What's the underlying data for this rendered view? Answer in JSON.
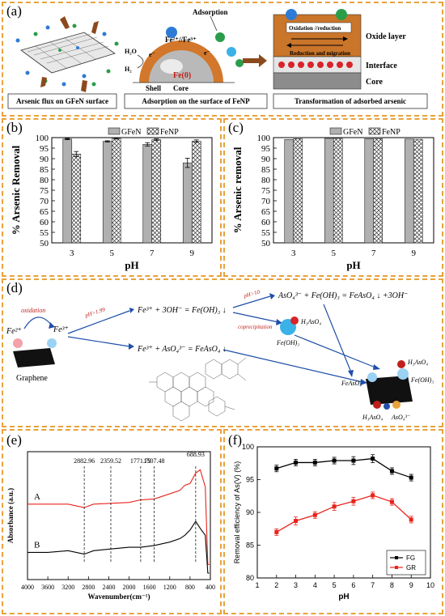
{
  "panel_a": {
    "label": "(a)",
    "h2o": "H₂O",
    "h2": "H₂",
    "e1": "e⁻",
    "e2": "e⁻",
    "fe_ions": "Fe²⁺//Fe³⁺",
    "fe0": "Fe(0)",
    "adsorption": "Adsorption",
    "shell": "Shell",
    "core": "Core",
    "oxidation_reduction": "Oxidation //reduction",
    "reduction_migration": "Reduction and migration",
    "oxide_layer": "Oxide layer",
    "interface": "Interface",
    "core_right": "Core",
    "captions": [
      "Arsenic flux  on GFeN surface",
      "Adsorption on the surface of FeNP",
      "Transformation of adsorbed arsenic"
    ]
  },
  "panel_b": {
    "label": "(b)"
  },
  "panel_c": {
    "label": "(c)"
  },
  "panel_d": {
    "label": "(d)",
    "oxidation": "oxidation",
    "fe2": "Fe²⁺",
    "fe3": "Fe³⁺",
    "graphene": "Graphene",
    "ph_cond": "pH>1.99",
    "eq1": "Fe³⁺ + 3OH⁻ = Fe(OH)₃ ↓",
    "eq2": "Fe³⁺ + AsO₄³⁻ = FeAsO₄ ↓",
    "ph10": "pH>10",
    "eq3": "AsO₄³⁻ + Fe(OH)₃ = FeAsO₄ ↓ +3OH⁻",
    "coprecipitation": "coprecipitation",
    "h3aso4": "H₃AsO₄",
    "feoh3": "Fe(OH)₃",
    "h3aso4_r": "H₃AsO₄",
    "feaso4": "FeAsO₄",
    "feoh3_r": "Fe(OH)₃",
    "h3aso4_bottom": "H₃AsO₄",
    "aso4_bottom": "AsO₄³⁻"
  },
  "panel_e": {
    "label": "(e)"
  },
  "panel_f": {
    "label": "(f)"
  },
  "chart_data": [
    {
      "id": "b",
      "type": "bar",
      "categories": [
        "3",
        "5",
        "7",
        "9"
      ],
      "series": [
        {
          "name": "GFeN",
          "values": [
            99.3,
            98.2,
            96.8,
            88.0
          ],
          "errors": [
            0.3,
            0.3,
            0.8,
            2.2
          ]
        },
        {
          "name": "FeNP",
          "values": [
            92.2,
            99.6,
            99.0,
            98.3
          ],
          "errors": [
            1.2,
            0.3,
            0.4,
            0.6
          ]
        }
      ],
      "xlabel": "pH",
      "ylabel": "% Arsenic Removal",
      "ylim": [
        50,
        100
      ],
      "yticks": [
        50,
        55,
        60,
        65,
        70,
        75,
        80,
        85,
        90,
        95,
        100
      ],
      "legend": "top"
    },
    {
      "id": "c",
      "type": "bar",
      "categories": [
        "3",
        "5",
        "7",
        "9"
      ],
      "series": [
        {
          "name": "GFeN",
          "values": [
            99.1,
            99.6,
            99.5,
            99.3
          ],
          "errors": [
            0,
            0,
            0,
            0
          ]
        },
        {
          "name": "FeNP",
          "values": [
            99.5,
            99.6,
            99.5,
            99.2
          ],
          "errors": [
            0,
            0,
            0,
            0
          ]
        }
      ],
      "xlabel": "pH",
      "ylabel": "% Arsenic removal",
      "ylim": [
        50,
        100
      ],
      "yticks": [
        50,
        55,
        60,
        65,
        70,
        75,
        80,
        85,
        90,
        95,
        100
      ],
      "legend": "top"
    },
    {
      "id": "e",
      "type": "line",
      "xlabel": "Wavenumber(cm⁻¹)",
      "ylabel": "Absorbance (a.u.)",
      "xlim": [
        4000,
        400
      ],
      "xticks": [
        4000,
        3600,
        3200,
        2800,
        2400,
        2000,
        1600,
        1200,
        800,
        400
      ],
      "peaks": [
        "2882.96",
        "2359.52",
        "1771.79",
        "1507.48",
        "688.93"
      ],
      "peak_positions": [
        2882.96,
        2359.52,
        1771.79,
        1507.48,
        688.93
      ],
      "series": [
        {
          "name": "A",
          "x": [
            4000,
            3600,
            3200,
            2883,
            2700,
            2360,
            2000,
            1772,
            1507,
            1200,
            1000,
            900,
            800,
            689,
            600,
            500,
            450,
            420
          ],
          "y": [
            0.4,
            0.4,
            0.4,
            0.38,
            0.4,
            0.405,
            0.41,
            0.425,
            0.43,
            0.46,
            0.48,
            0.51,
            0.52,
            0.58,
            0.6,
            0.5,
            0.05,
            0.05
          ]
        },
        {
          "name": "B",
          "x": [
            4000,
            3600,
            3200,
            2883,
            2700,
            2360,
            2000,
            1772,
            1507,
            1200,
            1000,
            900,
            800,
            689,
            600,
            500,
            450,
            420
          ],
          "y": [
            0.12,
            0.12,
            0.13,
            0.11,
            0.13,
            0.14,
            0.15,
            0.15,
            0.16,
            0.18,
            0.2,
            0.22,
            0.25,
            0.3,
            0.26,
            0.22,
            0.0,
            0.0
          ]
        }
      ]
    },
    {
      "id": "f",
      "type": "line",
      "xlabel": "pH",
      "ylabel": "Removal efficiency of As(V) (%)",
      "xlim": [
        1,
        10
      ],
      "ylim": [
        80,
        100
      ],
      "xticks": [
        1,
        2,
        3,
        4,
        5,
        6,
        7,
        8,
        9,
        10
      ],
      "yticks": [
        80,
        85,
        90,
        95,
        100
      ],
      "series": [
        {
          "name": "FG",
          "color": "#000000",
          "x": [
            2,
            3,
            4,
            5,
            6,
            7,
            8,
            9
          ],
          "y": [
            96.7,
            97.6,
            97.6,
            97.9,
            97.9,
            98.2,
            96.3,
            95.3
          ],
          "errors": [
            0.5,
            0.5,
            0.5,
            0.5,
            0.6,
            0.6,
            0.5,
            0.5
          ]
        },
        {
          "name": "GR",
          "color": "#e8231c",
          "x": [
            2,
            3,
            4,
            5,
            6,
            7,
            8,
            9
          ],
          "y": [
            87.0,
            88.7,
            89.6,
            90.9,
            91.7,
            92.6,
            91.6,
            88.9
          ],
          "errors": [
            0.5,
            0.6,
            0.5,
            0.6,
            0.6,
            0.5,
            0.5,
            0.5
          ]
        }
      ],
      "legend": "bottom-right"
    }
  ]
}
